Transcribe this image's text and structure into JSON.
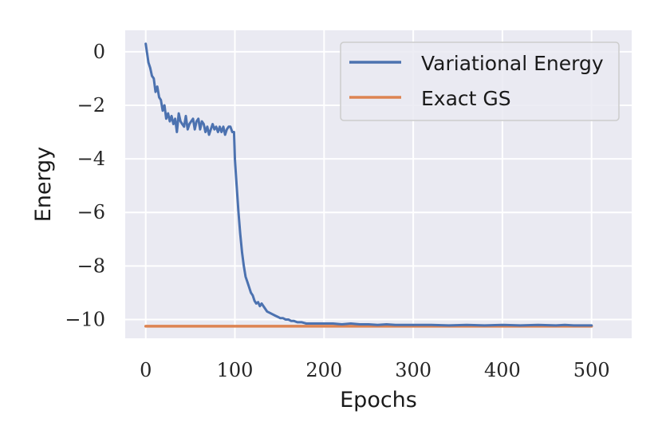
{
  "chart_data": {
    "type": "line",
    "title": "",
    "xlabel": "Epochs",
    "ylabel": "Energy",
    "xlim": [
      -23,
      545
    ],
    "ylim": [
      -10.7,
      0.8
    ],
    "xticks": [
      0,
      100,
      200,
      300,
      400,
      500
    ],
    "xtick_labels": [
      "0",
      "100",
      "200",
      "300",
      "400",
      "500"
    ],
    "yticks": [
      0,
      -2,
      -4,
      -6,
      -8,
      -10
    ],
    "ytick_labels": [
      "0",
      "−2",
      "−4",
      "−6",
      "−8",
      "−10"
    ],
    "grid": true,
    "legend_position": "top-right",
    "series": [
      {
        "name": "Variational Energy",
        "color": "#4c72b0",
        "x": [
          0,
          3,
          5,
          7,
          9,
          11,
          13,
          15,
          17,
          19,
          21,
          23,
          25,
          27,
          29,
          31,
          33,
          35,
          37,
          39,
          41,
          43,
          45,
          47,
          49,
          51,
          53,
          55,
          57,
          59,
          61,
          63,
          65,
          67,
          69,
          71,
          73,
          75,
          77,
          79,
          81,
          83,
          85,
          87,
          89,
          91,
          93,
          95,
          97,
          99,
          100,
          102,
          104,
          106,
          108,
          110,
          112,
          114,
          116,
          118,
          120,
          122,
          124,
          126,
          128,
          130,
          133,
          136,
          139,
          142,
          145,
          148,
          151,
          154,
          157,
          160,
          163,
          166,
          170,
          175,
          180,
          190,
          200,
          210,
          220,
          230,
          240,
          250,
          260,
          270,
          280,
          290,
          300,
          320,
          340,
          360,
          380,
          400,
          420,
          440,
          460,
          470,
          480,
          490,
          500
        ],
        "values": [
          0.3,
          -0.4,
          -0.6,
          -0.9,
          -1.0,
          -1.5,
          -1.3,
          -1.7,
          -1.8,
          -2.2,
          -2.0,
          -2.5,
          -2.3,
          -2.6,
          -2.4,
          -2.7,
          -2.5,
          -3.0,
          -2.3,
          -2.6,
          -2.7,
          -2.8,
          -2.4,
          -2.9,
          -2.7,
          -2.6,
          -2.5,
          -2.9,
          -2.6,
          -2.5,
          -2.9,
          -2.6,
          -2.7,
          -3.0,
          -2.8,
          -3.1,
          -2.9,
          -2.7,
          -2.9,
          -2.8,
          -3.0,
          -2.8,
          -3.0,
          -2.8,
          -3.1,
          -2.9,
          -2.8,
          -2.8,
          -3.0,
          -3.0,
          -4.0,
          -5.0,
          -6.0,
          -6.8,
          -7.5,
          -8.0,
          -8.4,
          -8.6,
          -8.8,
          -9.0,
          -9.1,
          -9.3,
          -9.4,
          -9.35,
          -9.5,
          -9.4,
          -9.55,
          -9.7,
          -9.75,
          -9.8,
          -9.85,
          -9.9,
          -9.95,
          -9.95,
          -10.0,
          -10.0,
          -10.05,
          -10.05,
          -10.1,
          -10.1,
          -10.15,
          -10.15,
          -10.15,
          -10.15,
          -10.18,
          -10.15,
          -10.18,
          -10.18,
          -10.2,
          -10.18,
          -10.2,
          -10.2,
          -10.2,
          -10.2,
          -10.22,
          -10.2,
          -10.22,
          -10.2,
          -10.22,
          -10.2,
          -10.22,
          -10.2,
          -10.22,
          -10.22,
          -10.22
        ]
      },
      {
        "name": "Exact GS",
        "color": "#dd8452",
        "x": [
          0,
          500
        ],
        "values": [
          -10.25,
          -10.25
        ]
      }
    ]
  },
  "colors": {
    "plot_background": "#eaeaf2",
    "grid": "#ffffff"
  }
}
